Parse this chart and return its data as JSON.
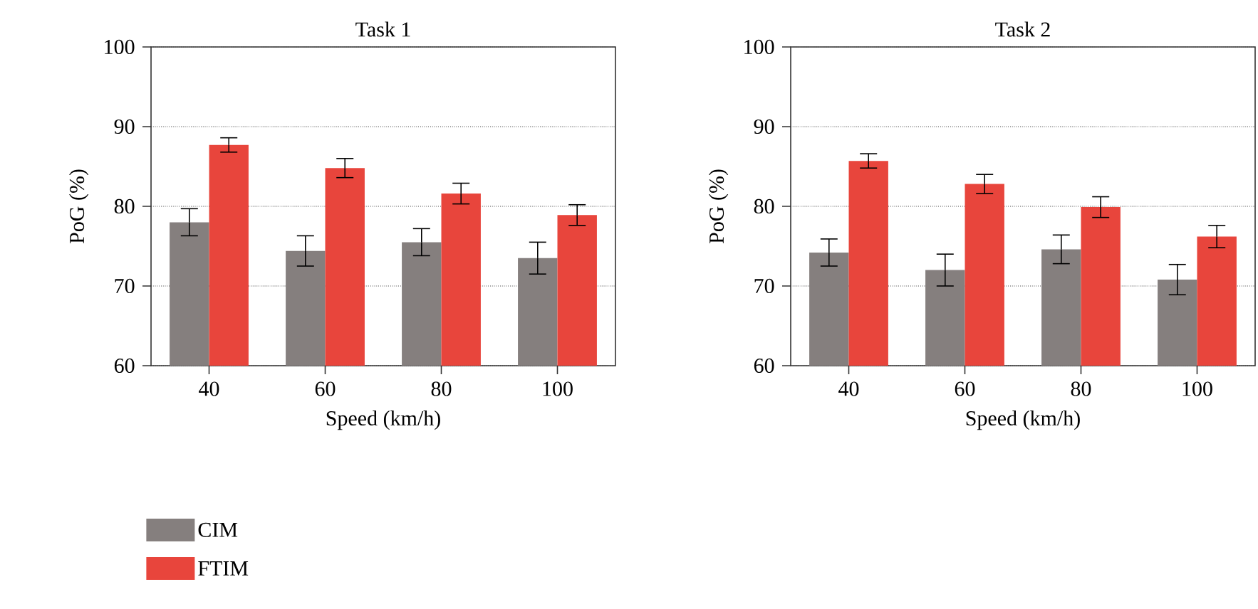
{
  "chart_data": [
    {
      "type": "bar",
      "title": "Task 1",
      "xlabel": "Speed (km/h)",
      "ylabel": "PoG (%)",
      "categories": [
        "40",
        "60",
        "80",
        "100"
      ],
      "series": [
        {
          "name": "CIM",
          "color": "#857f7e",
          "values": [
            78.0,
            74.4,
            75.5,
            73.5
          ],
          "errors": [
            1.7,
            1.9,
            1.7,
            2.0
          ]
        },
        {
          "name": "FTIM",
          "color": "#e8453c",
          "values": [
            87.7,
            84.8,
            81.6,
            78.9
          ],
          "errors": [
            0.9,
            1.2,
            1.3,
            1.3
          ]
        }
      ],
      "ylim": [
        60,
        100
      ],
      "yticks": [
        60,
        70,
        80,
        90,
        100
      ],
      "grid": "y",
      "legend": "bottom left"
    },
    {
      "type": "bar",
      "title": "Task 2",
      "xlabel": "Speed (km/h)",
      "ylabel": "PoG (%)",
      "categories": [
        "40",
        "60",
        "80",
        "100"
      ],
      "series": [
        {
          "color": "#857f7e",
          "values": [
            74.2,
            72.0,
            74.6,
            70.8
          ],
          "errors": [
            1.7,
            2.0,
            1.8,
            1.9
          ]
        },
        {
          "color": "#e8453c",
          "values": [
            85.7,
            82.8,
            79.9,
            76.2
          ],
          "errors": [
            0.9,
            1.2,
            1.3,
            1.4
          ]
        }
      ],
      "ylim": [
        60,
        100
      ],
      "yticks": [
        60,
        70,
        80,
        90,
        100
      ],
      "grid": "y"
    }
  ]
}
